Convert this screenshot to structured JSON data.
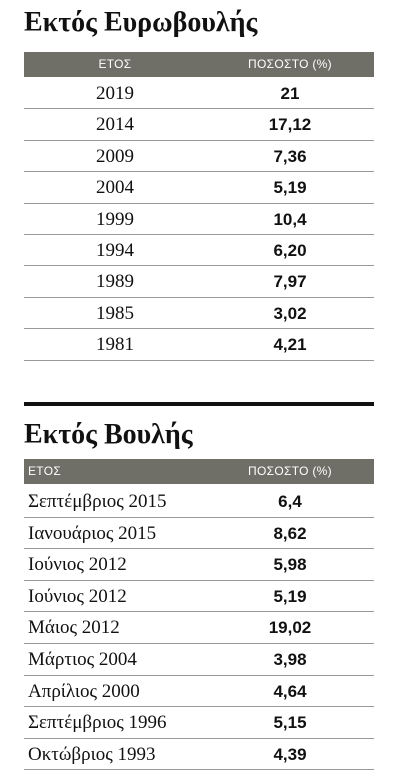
{
  "sections": [
    {
      "title": "Εκτός Ευρωβουλής",
      "header": [
        "ΕΤΟΣ",
        "ΠΟΣΟΣΤΟ (%)"
      ],
      "rows": [
        [
          "2019",
          "21"
        ],
        [
          "2014",
          "17,12"
        ],
        [
          "2009",
          "7,36"
        ],
        [
          "2004",
          "5,19"
        ],
        [
          "1999",
          "10,4"
        ],
        [
          "1994",
          "6,20"
        ],
        [
          "1989",
          "7,97"
        ],
        [
          "1985",
          "3,02"
        ],
        [
          "1981",
          "4,21"
        ]
      ]
    },
    {
      "title": "Εκτός Βουλής",
      "header": [
        "ΕΤΟΣ",
        "ΠΟΣΟΣΤΟ (%)"
      ],
      "rows": [
        [
          "Σεπτέμβριος 2015",
          "6,4"
        ],
        [
          "Ιανουάριος 2015",
          "8,62"
        ],
        [
          "Ιούνιος 2012",
          "5,98"
        ],
        [
          "Ιούνιος 2012",
          "5,19"
        ],
        [
          "Μάιος 2012",
          "19,02"
        ],
        [
          "Μάρτιος 2004",
          "3,98"
        ],
        [
          "Απρίλιος 2000",
          "4,64"
        ],
        [
          "Σεπτέμβριος 1996",
          "5,15"
        ],
        [
          "Οκτώβριος 1993",
          "4,39"
        ]
      ]
    }
  ]
}
